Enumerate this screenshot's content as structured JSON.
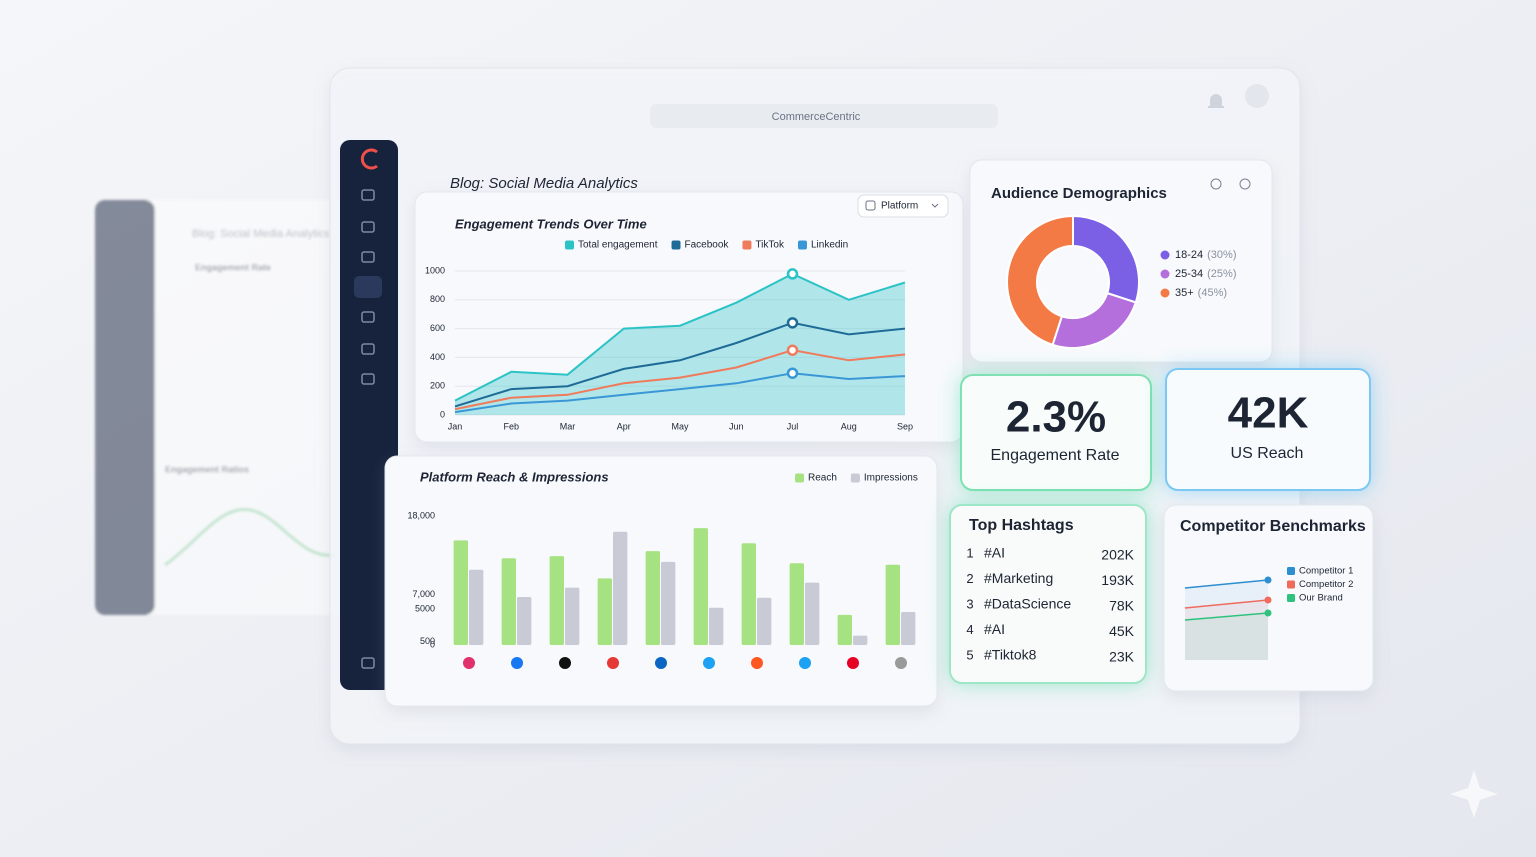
{
  "app_name": "CommerceCentric",
  "page_title": "Blog: Social Media Analytics",
  "background_panel": {
    "title": "Blog: Social Media Analytics",
    "sections": [
      "Engagement Rate",
      "Engagement Ratios"
    ]
  },
  "chart_data": [
    {
      "type": "line",
      "title": "Engagement Trends Over Time",
      "filter_label": "Platform",
      "categories": [
        "Jan",
        "Feb",
        "Mar",
        "Apr",
        "May",
        "Jun",
        "Jul",
        "Aug",
        "Sep"
      ],
      "series": [
        {
          "name": "Total engagement",
          "color": "#2cc3c6",
          "fill": true,
          "values": [
            100,
            300,
            280,
            600,
            620,
            780,
            980,
            800,
            920
          ]
        },
        {
          "name": "Facebook",
          "color": "#1f6b98",
          "values": [
            60,
            180,
            200,
            320,
            380,
            500,
            640,
            560,
            600
          ]
        },
        {
          "name": "TikTok",
          "color": "#ef7a5c",
          "values": [
            40,
            120,
            140,
            220,
            260,
            330,
            450,
            380,
            420
          ]
        },
        {
          "name": "Linkedin",
          "color": "#3a97d6",
          "values": [
            20,
            80,
            100,
            140,
            180,
            220,
            290,
            250,
            270
          ]
        }
      ],
      "ylim": [
        0,
        1000
      ],
      "yticks": [
        0,
        200,
        400,
        600,
        800,
        1000
      ],
      "grid": true
    },
    {
      "type": "bar",
      "title": "Platform Reach & Impressions",
      "categories": [
        null,
        null,
        null,
        null,
        null,
        null,
        null,
        null,
        null,
        null
      ],
      "series": [
        {
          "name": "Reach",
          "color": "#a6e282",
          "values": [
            14600,
            12100,
            12400,
            9300,
            13100,
            16300,
            14200,
            11400,
            4200,
            11200
          ]
        },
        {
          "name": "Impressions",
          "color": "#c8cbd5",
          "values": [
            10500,
            6700,
            8000,
            15800,
            11600,
            5200,
            6600,
            8700,
            1300,
            4600
          ]
        }
      ],
      "ylim": [
        0,
        18000
      ],
      "yticks": [
        0,
        500,
        5000,
        {
          "value": 7000,
          "label": "7,000"
        },
        {
          "value": 18000,
          "label": "18,000"
        }
      ],
      "grid": false
    },
    {
      "type": "pie",
      "title": "Audience Demographics",
      "donut": true,
      "categories": [
        "18-24",
        "25-34",
        "35+"
      ],
      "values": [
        30,
        25,
        45
      ],
      "value_labels": [
        "(30%)",
        "(25%)",
        "(45%)"
      ],
      "colors": [
        "#7b5fe4",
        "#b46fdc",
        "#f47a45"
      ]
    },
    {
      "type": "line",
      "title": "Competitor Benchmarks",
      "categories": [
        null,
        null
      ],
      "series": [
        {
          "name": "Competitor 1",
          "color": "#2d8fd0",
          "values": [
            72,
            80
          ]
        },
        {
          "name": "Competitor 2",
          "color": "#ef6b5e",
          "values": [
            52,
            60
          ]
        },
        {
          "name": "Our Brand",
          "color": "#2ec27e",
          "values": [
            40,
            47
          ]
        }
      ],
      "ylim": [
        0,
        100
      ]
    }
  ],
  "kpis": [
    {
      "value": "2.3%",
      "label": "Engagement Rate",
      "color": "#20b36f"
    },
    {
      "value": "42K",
      "label": "US Reach",
      "color": "#2a8bd6"
    }
  ],
  "hashtags": {
    "title": "Top Hashtags",
    "rows": [
      [
        "1",
        "#AI",
        "202K"
      ],
      [
        "2",
        "#Marketing",
        "193K"
      ],
      [
        "3",
        "#DataScience",
        "78K"
      ],
      [
        "4",
        "#AI",
        "45K"
      ],
      [
        "5",
        "#Tiktok8",
        "23K"
      ]
    ]
  }
}
